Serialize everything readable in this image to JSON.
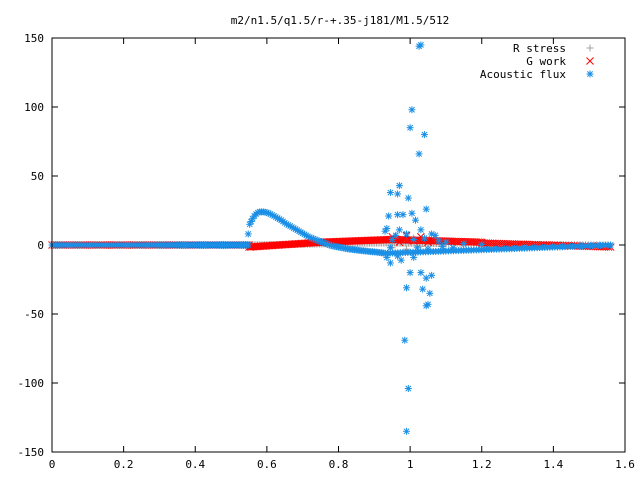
{
  "chart_data": {
    "type": "scatter",
    "title": "m2/n1.5/q1.5/r-+.35-j181/M1.5/512",
    "xlabel": "",
    "ylabel": "",
    "xlim": [
      0,
      1.6
    ],
    "ylim": [
      -150,
      150
    ],
    "x_ticks": [
      "0",
      "0.2",
      "0.4",
      "0.6",
      "0.8",
      "1",
      "1.2",
      "1.4",
      "1.6"
    ],
    "y_ticks": [
      "150",
      "100",
      "50",
      "0",
      "-50",
      "-100",
      "-150"
    ],
    "x_tick_values": [
      0,
      0.2,
      0.4,
      0.6,
      0.8,
      1.0,
      1.2,
      1.4,
      1.6
    ],
    "y_tick_values": [
      150,
      100,
      50,
      0,
      -50,
      -100,
      -150
    ],
    "grid": false,
    "legend_position": "top-right",
    "series": [
      {
        "name": "R stress",
        "marker": "plus",
        "color": "#a0a0a0",
        "segments": [
          {
            "x0": 0.0,
            "x1": 0.55,
            "y_start": 0,
            "y_end": 0,
            "n": 90
          },
          {
            "x0": 0.55,
            "x1": 0.93,
            "y_start": 0,
            "y_end": 1.5,
            "n": 80
          },
          {
            "x0": 0.93,
            "x1": 1.1,
            "y_start": 1.5,
            "y_end": 1.0,
            "n": 40
          },
          {
            "x0": 1.1,
            "x1": 1.56,
            "y_start": 1.0,
            "y_end": 0,
            "n": 60
          }
        ],
        "points": [
          [
            0.95,
            -2
          ],
          [
            0.97,
            4
          ],
          [
            0.99,
            -3
          ],
          [
            1.01,
            5
          ],
          [
            1.03,
            -1
          ],
          [
            1.05,
            3
          ]
        ]
      },
      {
        "name": "G work",
        "marker": "cross",
        "color": "#ff0000",
        "segments": [
          {
            "x0": 0.0,
            "x1": 0.55,
            "y_start": 0,
            "y_end": 0,
            "n": 90
          },
          {
            "x0": 0.55,
            "x1": 0.75,
            "y_start": -1.5,
            "y_end": 2,
            "n": 50
          },
          {
            "x0": 0.75,
            "x1": 0.95,
            "y_start": 2,
            "y_end": 4,
            "n": 50
          },
          {
            "x0": 0.95,
            "x1": 1.2,
            "y_start": 4,
            "y_end": 2,
            "n": 50
          },
          {
            "x0": 1.2,
            "x1": 1.56,
            "y_start": 1.5,
            "y_end": -1.5,
            "n": 60
          }
        ],
        "points": [
          [
            0.95,
            6
          ],
          [
            0.97,
            2
          ],
          [
            0.99,
            7
          ],
          [
            1.01,
            3
          ],
          [
            1.03,
            6
          ],
          [
            1.05,
            2
          ]
        ]
      },
      {
        "name": "Acoustic flux",
        "marker": "star",
        "color": "#1a8fe6",
        "segments": [
          {
            "x0": 0.0,
            "x1": 0.548,
            "y_start": 0,
            "y_end": 0,
            "n": 100
          }
        ],
        "curve": [
          [
            0.548,
            8
          ],
          [
            0.552,
            15
          ],
          [
            0.556,
            17
          ],
          [
            0.56,
            19
          ],
          [
            0.565,
            21
          ],
          [
            0.57,
            22.5
          ],
          [
            0.575,
            23.5
          ],
          [
            0.58,
            24
          ],
          [
            0.59,
            24
          ],
          [
            0.6,
            23.5
          ],
          [
            0.61,
            22.5
          ],
          [
            0.62,
            21
          ],
          [
            0.63,
            19.5
          ],
          [
            0.64,
            18
          ],
          [
            0.65,
            16
          ],
          [
            0.66,
            14.5
          ],
          [
            0.67,
            13
          ],
          [
            0.68,
            11.5
          ],
          [
            0.69,
            10
          ],
          [
            0.7,
            8.5
          ],
          [
            0.71,
            7
          ],
          [
            0.72,
            5.5
          ],
          [
            0.73,
            4.5
          ],
          [
            0.74,
            3.5
          ],
          [
            0.75,
            2.5
          ],
          [
            0.76,
            1.5
          ],
          [
            0.77,
            0.5
          ],
          [
            0.78,
            -0.5
          ],
          [
            0.79,
            -1
          ],
          [
            0.8,
            -1.5
          ],
          [
            0.81,
            -2
          ],
          [
            0.82,
            -2.5
          ],
          [
            0.83,
            -3
          ],
          [
            0.84,
            -3.3
          ],
          [
            0.85,
            -3.6
          ],
          [
            0.86,
            -4
          ],
          [
            0.87,
            -4.2
          ],
          [
            0.88,
            -4.5
          ],
          [
            0.89,
            -4.8
          ],
          [
            0.9,
            -5
          ],
          [
            0.91,
            -5.3
          ],
          [
            0.92,
            -5.6
          ],
          [
            0.93,
            -6
          ]
        ],
        "points": [
          [
            1.025,
            144
          ],
          [
            1.03,
            145
          ],
          [
            1.005,
            98
          ],
          [
            1.0,
            85
          ],
          [
            1.04,
            80
          ],
          [
            1.025,
            66
          ],
          [
            0.97,
            43
          ],
          [
            0.945,
            38
          ],
          [
            0.965,
            37
          ],
          [
            0.995,
            34
          ],
          [
            1.045,
            26
          ],
          [
            0.965,
            22
          ],
          [
            0.98,
            22
          ],
          [
            1.005,
            23
          ],
          [
            0.94,
            21
          ],
          [
            1.015,
            18
          ],
          [
            0.935,
            12
          ],
          [
            0.97,
            11
          ],
          [
            1.03,
            11
          ],
          [
            0.93,
            10
          ],
          [
            0.96,
            7
          ],
          [
            0.99,
            8
          ],
          [
            1.06,
            8
          ],
          [
            1.07,
            7
          ],
          [
            0.95,
            4
          ],
          [
            1.01,
            4
          ],
          [
            1.04,
            5
          ],
          [
            0.945,
            -2
          ],
          [
            1.02,
            -2
          ],
          [
            1.05,
            -3
          ],
          [
            0.935,
            -9
          ],
          [
            0.965,
            -8
          ],
          [
            1.01,
            -9
          ],
          [
            0.945,
            -13
          ],
          [
            0.975,
            -11
          ],
          [
            1.0,
            -20
          ],
          [
            1.03,
            -20
          ],
          [
            1.06,
            -22
          ],
          [
            1.045,
            -24
          ],
          [
            0.99,
            -31
          ],
          [
            1.035,
            -32
          ],
          [
            1.055,
            -35
          ],
          [
            1.05,
            -43
          ],
          [
            1.045,
            -44
          ],
          [
            0.985,
            -69
          ],
          [
            0.995,
            -104
          ],
          [
            0.99,
            -135
          ],
          [
            1.08,
            3
          ],
          [
            1.09,
            -1
          ],
          [
            1.1,
            2
          ],
          [
            1.12,
            -2
          ],
          [
            1.15,
            1
          ],
          [
            1.2,
            0.5
          ]
        ],
        "tail": {
          "x0": 0.93,
          "x1": 1.56,
          "y_start": -6,
          "y_end": 0,
          "n": 90
        }
      }
    ]
  }
}
